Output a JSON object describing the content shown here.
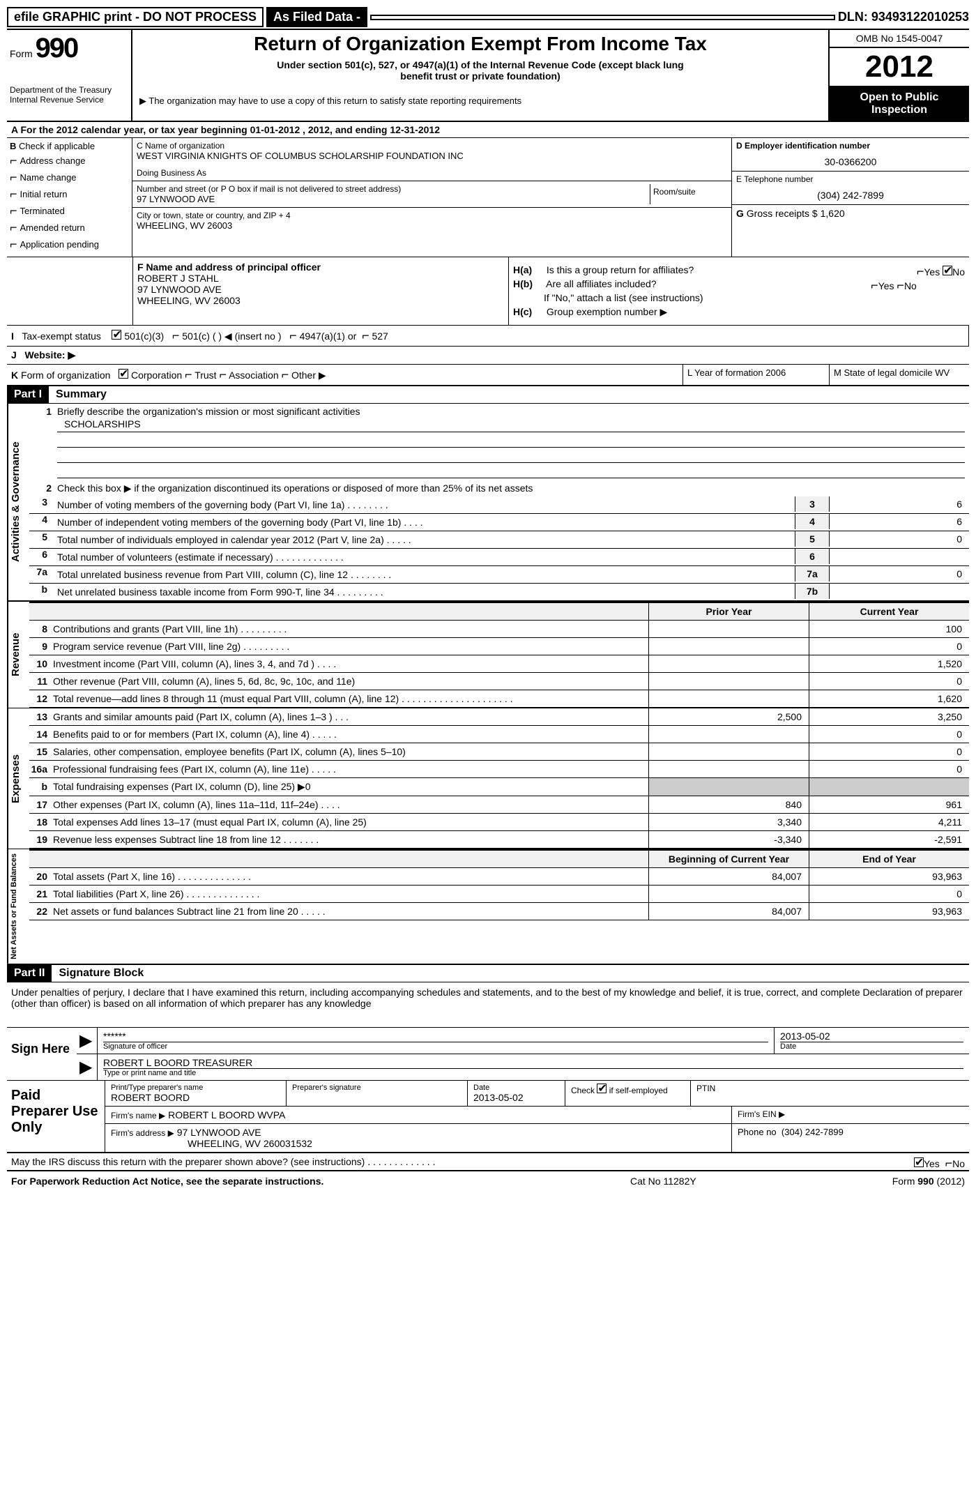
{
  "top": {
    "efile": "efile GRAPHIC print - DO NOT PROCESS",
    "asfiled": "As Filed Data -",
    "dln_lbl": "DLN:",
    "dln": "93493122010253"
  },
  "header": {
    "form_lbl": "Form",
    "form_num": "990",
    "dept1": "Department of the Treasury",
    "dept2": "Internal Revenue Service",
    "title": "Return of Organization Exempt From Income Tax",
    "sub1": "Under section 501(c), 527, or 4947(a)(1) of the Internal Revenue Code (except black lung",
    "sub2": "benefit trust or private foundation)",
    "note": "The organization may have to use a copy of this return to satisfy state reporting requirements",
    "omb": "OMB No 1545-0047",
    "year": "2012",
    "open1": "Open to Public",
    "open2": "Inspection"
  },
  "rowA": "A  For the 2012 calendar year, or tax year beginning 01-01-2012    , 2012, and ending 12-31-2012",
  "B": {
    "lbl": "B",
    "lbl2": "Check if applicable",
    "opts": [
      "Address change",
      "Name change",
      "Initial return",
      "Terminated",
      "Amended return",
      "Application pending"
    ]
  },
  "C": {
    "name_lbl": "C Name of organization",
    "name": "WEST VIRGINIA KNIGHTS OF COLUMBUS SCHOLARSHIP FOUNDATION INC",
    "dba_lbl": "Doing Business As",
    "street_lbl": "Number and street (or P O  box if mail is not delivered to street address)",
    "room_lbl": "Room/suite",
    "street": "97 LYNWOOD AVE",
    "city_lbl": "City or town, state or country, and ZIP + 4",
    "city": "WHEELING, WV  26003"
  },
  "D": {
    "lbl": "D Employer identification number",
    "val": "30-0366200",
    "tel_lbl": "E Telephone number",
    "tel": "(304) 242-7899",
    "gross_lbl": "G",
    "gross_txt": "Gross receipts $",
    "gross": "1,620"
  },
  "F": {
    "lbl": "F    Name and address of principal officer",
    "name": "ROBERT J STAHL",
    "addr1": "97 LYNWOOD AVE",
    "addr2": "WHEELING, WV  26003"
  },
  "H": {
    "a_lbl": "H(a)",
    "a_txt": "Is this a group return for affiliates?",
    "b_lbl": "H(b)",
    "b_txt": "Are all affiliates included?",
    "b_note": "If \"No,\" attach a list  (see instructions)",
    "c_lbl": "H(c)",
    "c_txt": "Group exemption number ▶",
    "yes": "Yes",
    "no": "No"
  },
  "I": {
    "lbl": "I",
    "txt": "Tax-exempt status",
    "o1": "501(c)(3)",
    "o2": "501(c) (    ) ◀ (insert no )",
    "o3": "4947(a)(1) or",
    "o4": "527"
  },
  "J": {
    "lbl": "J",
    "txt": "Website: ▶"
  },
  "K": {
    "lbl": "K",
    "txt": "Form of organization",
    "opts": [
      "Corporation",
      "Trust",
      "Association",
      "Other ▶"
    ]
  },
  "L": {
    "txt": "L Year of formation  2006"
  },
  "M": {
    "txt": "M State of legal domicile WV"
  },
  "part1": {
    "hdr": "Part I",
    "title": "Summary"
  },
  "gov": {
    "side": "Activities & Governance",
    "l1": "Briefly describe the organization's mission or most significant activities",
    "l1v": "SCHOLARSHIPS",
    "l2": "Check this box ▶     if the organization discontinued its operations or disposed of more than 25% of its net assets",
    "rows": [
      {
        "n": "3",
        "t": "Number of voting members of the governing body (Part VI, line 1a)   .   .   .   .   .   .   .   .",
        "c": "3",
        "v": "6"
      },
      {
        "n": "4",
        "t": "Number of independent voting members of the governing body (Part VI, line 1b)    .    .    .    .",
        "c": "4",
        "v": "6"
      },
      {
        "n": "5",
        "t": "Total number of individuals employed in calendar year 2012 (Part V, line 2a)    .    .    .    .    .",
        "c": "5",
        "v": "0"
      },
      {
        "n": "6",
        "t": "Total number of volunteers (estimate if necessary)   .   .   .   .   .   .   .   .   .   .   .   .   .",
        "c": "6",
        "v": ""
      },
      {
        "n": "7a",
        "t": "Total unrelated business revenue from Part VIII, column (C), line 12    .    .    .    .    .    .    .    .",
        "c": "7a",
        "v": "0"
      },
      {
        "n": "b",
        "t": "Net unrelated business taxable income from Form 990-T, line 34   .   .   .   .   .   .   .   .   .",
        "c": "7b",
        "v": ""
      }
    ]
  },
  "fin_head": {
    "py": "Prior Year",
    "cy": "Current Year",
    "bcy": "Beginning of Current Year",
    "eoy": "End of Year"
  },
  "rev": {
    "side": "Revenue",
    "rows": [
      {
        "n": "8",
        "t": "Contributions and grants (Part VIII, line 1h)    .    .    .    .    .    .    .    .    .",
        "py": "",
        "cy": "100"
      },
      {
        "n": "9",
        "t": "Program service revenue (Part VIII, line 2g)    .    .    .    .    .    .    .    .    .",
        "py": "",
        "cy": "0"
      },
      {
        "n": "10",
        "t": "Investment income (Part VIII, column (A), lines 3, 4, and 7d )    .    .    .    .",
        "py": "",
        "cy": "1,520"
      },
      {
        "n": "11",
        "t": "Other revenue (Part VIII, column (A), lines 5, 6d, 8c, 9c, 10c, and 11e)",
        "py": "",
        "cy": "0"
      },
      {
        "n": "12",
        "t": "Total revenue—add lines 8 through 11 (must equal Part VIII, column (A), line 12) .    .    .    .    .    .    .    .    .    .    .    .    .    .    .    .    .    .    .    .    .",
        "py": "",
        "cy": "1,620"
      }
    ]
  },
  "exp": {
    "side": "Expenses",
    "rows": [
      {
        "n": "13",
        "t": "Grants and similar amounts paid (Part IX, column (A), lines 1–3 )    .    .    .",
        "py": "2,500",
        "cy": "3,250"
      },
      {
        "n": "14",
        "t": "Benefits paid to or for members (Part IX, column (A), line 4)    .    .    .    .    .",
        "py": "",
        "cy": "0"
      },
      {
        "n": "15",
        "t": "Salaries, other compensation, employee benefits (Part IX, column (A), lines 5–10)",
        "py": "",
        "cy": "0"
      },
      {
        "n": "16a",
        "t": "Professional fundraising fees (Part IX, column (A), line 11e)    .    .    .    .    .",
        "py": "",
        "cy": "0"
      },
      {
        "n": "b",
        "t": "Total fundraising expenses (Part IX, column (D), line 25) ▶0",
        "py": "—",
        "cy": "—"
      },
      {
        "n": "17",
        "t": "Other expenses (Part IX, column (A), lines 11a–11d, 11f–24e)    .    .    .    .",
        "py": "840",
        "cy": "961"
      },
      {
        "n": "18",
        "t": "Total expenses  Add lines 13–17 (must equal Part IX, column (A), line 25)",
        "py": "3,340",
        "cy": "4,211"
      },
      {
        "n": "19",
        "t": "Revenue less expenses  Subtract line 18 from line 12   .   .   .   .   .   .   .",
        "py": "-3,340",
        "cy": "-2,591"
      }
    ]
  },
  "na": {
    "side": "Net Assets or Fund Balances",
    "rows": [
      {
        "n": "20",
        "t": "Total assets (Part X, line 16)   .   .   .   .   .   .   .   .   .   .   .   .   .   .",
        "py": "84,007",
        "cy": "93,963"
      },
      {
        "n": "21",
        "t": "Total liabilities (Part X, line 26)   .   .   .   .   .   .   .   .   .   .   .   .   .   .",
        "py": "",
        "cy": "0"
      },
      {
        "n": "22",
        "t": "Net assets or fund balances  Subtract line 21 from line 20    .    .    .    .    .",
        "py": "84,007",
        "cy": "93,963"
      }
    ]
  },
  "part2": {
    "hdr": "Part II",
    "title": "Signature Block"
  },
  "sig": {
    "perjury": "Under penalties of perjury, I declare that I have examined this return, including accompanying schedules and statements, and to the best of my knowledge and belief, it is true, correct, and complete  Declaration of preparer (other than officer) is based on all information of which preparer has any knowledge",
    "sign_here": "Sign Here",
    "stars": "******",
    "sig_of": "Signature of officer",
    "date": "2013-05-02",
    "date_lbl": "Date",
    "name": "ROBERT L BOORD TREASURER",
    "name_lbl": "Type or print name and title"
  },
  "prep": {
    "label": "Paid Preparer Use Only",
    "pname_lbl": "Print/Type preparer's name",
    "pname": "ROBERT BOORD",
    "psig_lbl": "Preparer's signature",
    "pdate_lbl": "Date",
    "pdate": "2013-05-02",
    "pchk": "Check      if self-employed",
    "ptin": "PTIN",
    "firm_name_lbl": "Firm's name     ▶",
    "firm_name": "ROBERT L BOORD WVPA",
    "firm_ein": "Firm's EIN ▶",
    "firm_addr_lbl": "Firm's address ▶",
    "firm_addr1": "97 LYNWOOD AVE",
    "firm_addr2": "WHEELING, WV  260031532",
    "phone_lbl": "Phone no",
    "phone": "(304) 242-7899"
  },
  "discuss": "May the IRS discuss this return with the preparer shown above? (see instructions)   .   .   .   .   .   .   .   .   .   .   .   .   .",
  "footer": {
    "pra": "For Paperwork Reduction Act Notice, see the separate instructions.",
    "cat": "Cat No  11282Y",
    "form": "Form 990 (2012)"
  }
}
